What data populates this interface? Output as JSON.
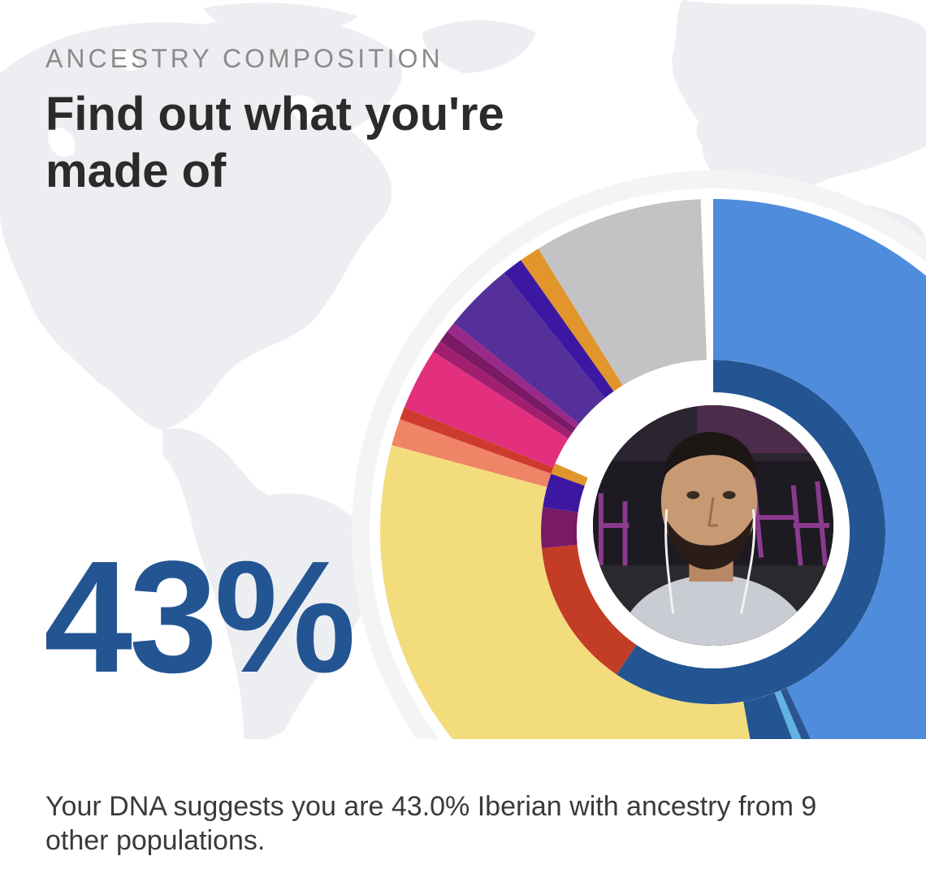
{
  "header": {
    "eyebrow": "ANCESTRY COMPOSITION",
    "headline": "Find out what you're made of"
  },
  "summary": {
    "percent_label": "43%",
    "caption": "Your DNA suggests you are 43.0% Iberian with ancestry from 9 other populations."
  },
  "colors": {
    "percent_text": "#245593",
    "map_land": "#eceef1",
    "ring_bg": "#f4f4f5"
  },
  "ancestry_chart": {
    "outer_segments": [
      {
        "value": 43.0,
        "color": "#4f8cdc"
      },
      {
        "value": 0.6,
        "color": "#2a5590"
      },
      {
        "value": 0.6,
        "color": "#62b3e4"
      },
      {
        "value": 3.0,
        "color": "#245593"
      },
      {
        "value": 32.0,
        "color": "#f3dc7c"
      },
      {
        "value": 1.3,
        "color": "#ef8466"
      },
      {
        "value": 0.6,
        "color": "#cf3a2e"
      },
      {
        "value": 3.0,
        "color": "#e2307f"
      },
      {
        "value": 0.6,
        "color": "#a21f70"
      },
      {
        "value": 0.6,
        "color": "#7a1a66"
      },
      {
        "value": 0.5,
        "color": "#9a2a8a"
      },
      {
        "value": 3.4,
        "color": "#55309a"
      },
      {
        "value": 1.0,
        "color": "#3c18a2"
      },
      {
        "value": 1.0,
        "color": "#e1952a"
      },
      {
        "value": 8.2,
        "color": "#c3c3c5"
      }
    ],
    "inner_segments": [
      {
        "value": 59.5,
        "color": "#245593"
      },
      {
        "value": 14.0,
        "color": "#c33c25"
      },
      {
        "value": 3.8,
        "color": "#7a1a66"
      },
      {
        "value": 3.2,
        "color": "#3c18a2"
      },
      {
        "value": 1.0,
        "color": "#e1952a"
      }
    ]
  },
  "portrait": {
    "icon": "user-photo"
  }
}
